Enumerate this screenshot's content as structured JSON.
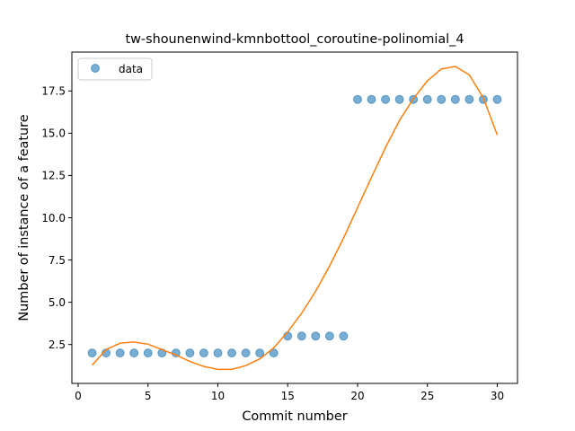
{
  "chart_data": {
    "type": "scatter",
    "title": "tw-shounenwind-kmnbottool_coroutine-polinomial_4",
    "xlabel": "Commit number",
    "ylabel": "Number of instance of a feature",
    "xlim": [
      -0.45,
      31.45
    ],
    "ylim": [
      0.2,
      19.8
    ],
    "xticks": [
      0,
      5,
      10,
      15,
      20,
      25,
      30
    ],
    "yticks": [
      2.5,
      5.0,
      7.5,
      10.0,
      12.5,
      15.0,
      17.5
    ],
    "ytick_labels": [
      "2.5",
      "5.0",
      "7.5",
      "10.0",
      "12.5",
      "15.0",
      "17.5"
    ],
    "legend": {
      "position": "top-left",
      "entries": [
        "data"
      ]
    },
    "grid": false,
    "series": [
      {
        "name": "data",
        "kind": "scatter",
        "color": "#1f77b4",
        "x": [
          1,
          2,
          3,
          4,
          5,
          6,
          7,
          8,
          9,
          10,
          11,
          12,
          13,
          14,
          15,
          16,
          17,
          18,
          19,
          20,
          21,
          22,
          23,
          24,
          25,
          26,
          27,
          28,
          29,
          30
        ],
        "y": [
          2,
          2,
          2,
          2,
          2,
          2,
          2,
          2,
          2,
          2,
          2,
          2,
          2,
          2,
          3,
          3,
          3,
          3,
          3,
          17,
          17,
          17,
          17,
          17,
          17,
          17,
          17,
          17,
          17,
          17
        ]
      },
      {
        "kind": "line",
        "color": "#ff7f0e",
        "x": [
          1,
          2,
          3,
          4,
          5,
          6,
          7,
          8,
          9,
          10,
          11,
          12,
          13,
          14,
          15,
          16,
          17,
          18,
          19,
          20,
          21,
          22,
          23,
          24,
          25,
          26,
          27,
          28,
          29,
          30
        ],
        "y": [
          1.28,
          2.2,
          2.58,
          2.65,
          2.52,
          2.2,
          1.88,
          1.5,
          1.2,
          1.03,
          1.03,
          1.25,
          1.65,
          2.3,
          3.25,
          4.35,
          5.65,
          7.15,
          8.8,
          10.6,
          12.4,
          14.15,
          15.75,
          17.05,
          18.1,
          18.8,
          18.95,
          18.45,
          17.1,
          14.9
        ]
      }
    ]
  }
}
